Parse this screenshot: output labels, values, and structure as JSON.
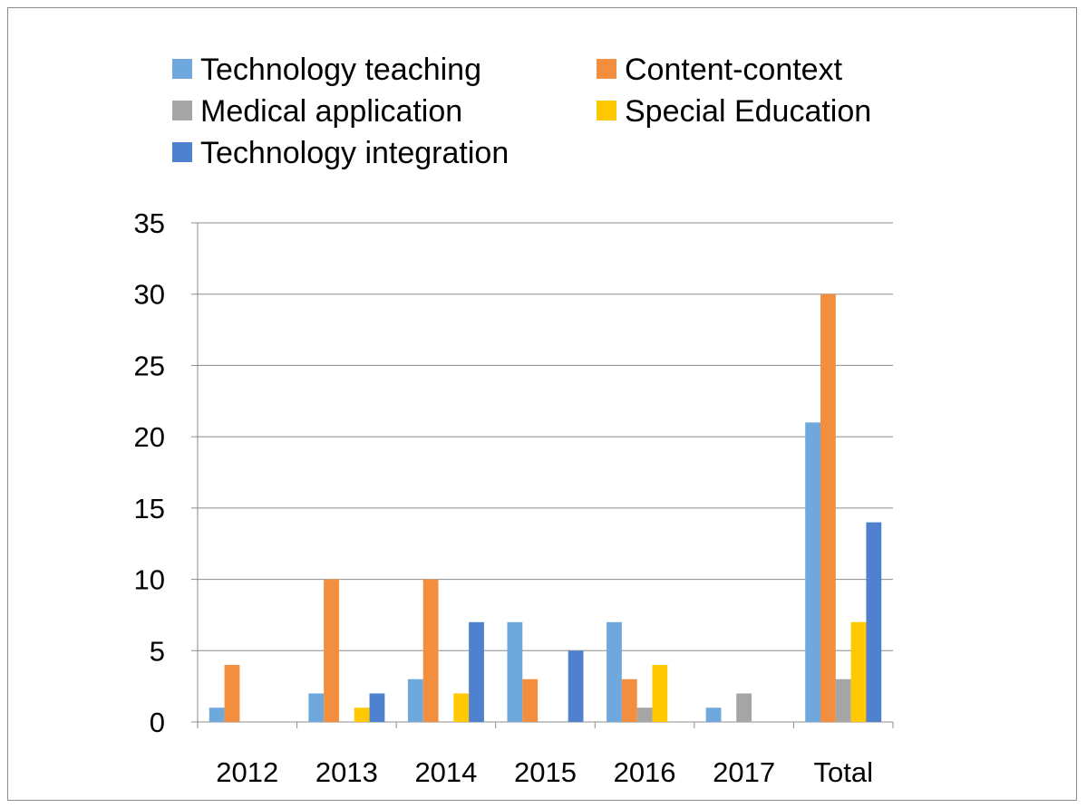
{
  "chart_data": {
    "type": "bar",
    "title": "",
    "xlabel": "",
    "ylabel": "",
    "categories": [
      "2012",
      "2013",
      "2014",
      "2015",
      "2016",
      "2017",
      "Total"
    ],
    "ylim": [
      0,
      35
    ],
    "yticks": [
      0,
      5,
      10,
      15,
      20,
      25,
      30,
      35
    ],
    "grid": true,
    "legend_position": "top",
    "series": [
      {
        "name": "Technology teaching",
        "color": "#6FA8DC",
        "values": [
          1,
          2,
          3,
          7,
          7,
          1,
          21
        ]
      },
      {
        "name": "Content-context",
        "color": "#F28E3E",
        "values": [
          4,
          10,
          10,
          3,
          3,
          0,
          30
        ]
      },
      {
        "name": "Medical application",
        "color": "#A5A5A5",
        "values": [
          0,
          0,
          0,
          0,
          1,
          2,
          3
        ]
      },
      {
        "name": "Special Education",
        "color": "#FFC800",
        "values": [
          0,
          1,
          2,
          0,
          4,
          0,
          7
        ]
      },
      {
        "name": "Technology integration",
        "color": "#4F81CF",
        "values": [
          0,
          2,
          7,
          5,
          0,
          0,
          14
        ]
      }
    ]
  }
}
